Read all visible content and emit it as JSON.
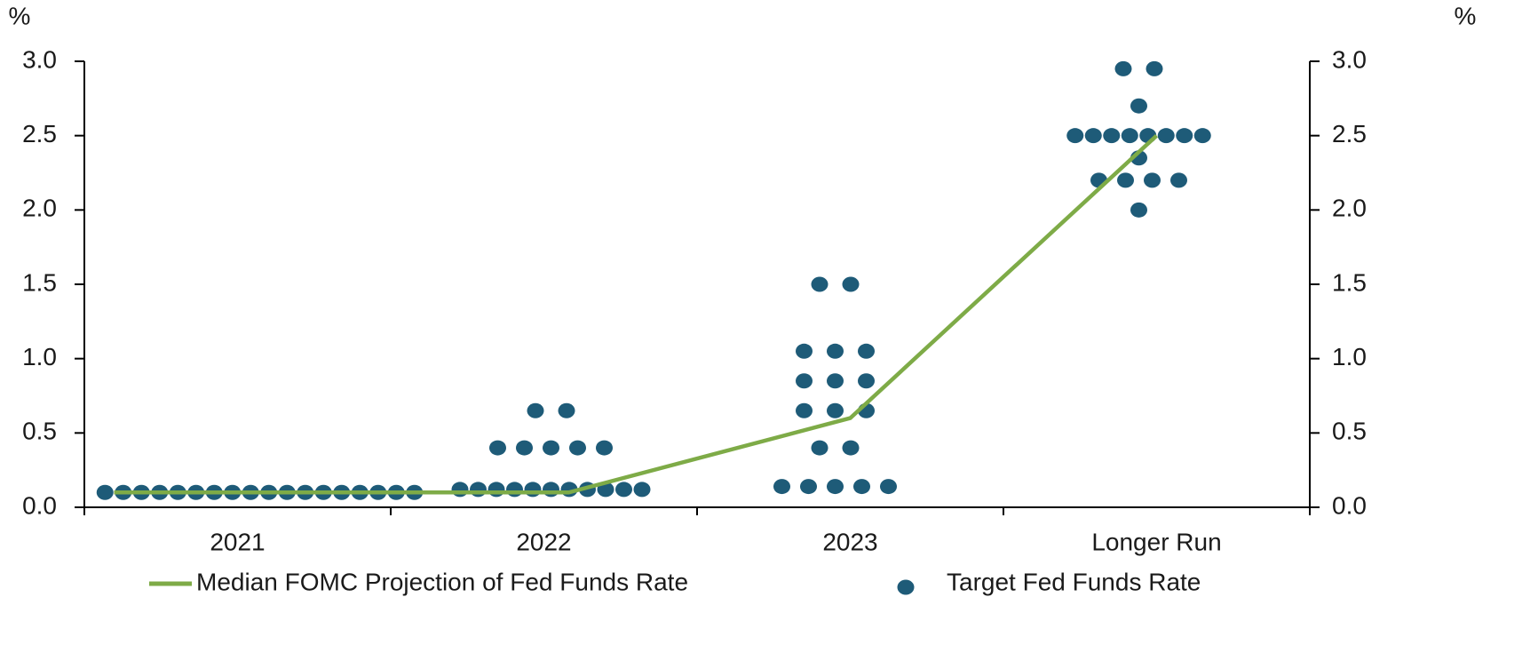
{
  "chart_data": {
    "type": "dot",
    "ylabel": "%",
    "y2label": "%",
    "categories": [
      "2021",
      "2022",
      "2023",
      "Longer Run"
    ],
    "ylim": [
      0,
      3
    ],
    "yticks": [
      {
        "value": 0,
        "label": "0.0"
      },
      {
        "value": 0.5,
        "label": "0.5"
      },
      {
        "value": 1,
        "label": "1.0"
      },
      {
        "value": 1.5,
        "label": "1.5"
      },
      {
        "value": 2,
        "label": "2.0"
      },
      {
        "value": 2.5,
        "label": "2.5"
      },
      {
        "value": 3,
        "label": "3.0"
      }
    ],
    "y2lim": [
      0,
      3
    ],
    "y2ticks": [
      {
        "value": 0,
        "label": "0.0"
      },
      {
        "value": 0.5,
        "label": "0.5"
      },
      {
        "value": 1,
        "label": "1.0"
      },
      {
        "value": 1.5,
        "label": "1.5"
      },
      {
        "value": 2,
        "label": "2.0"
      },
      {
        "value": 2.5,
        "label": "2.5"
      },
      {
        "value": 3,
        "label": "3.0"
      }
    ],
    "series": [
      {
        "name": "Median FOMC Projection of Fed Funds Rate",
        "color": "#7eab47",
        "values": [
          0.1,
          0.1,
          0.6,
          2.5
        ]
      },
      {
        "name": "Target Fed Funds Rate",
        "color": "#1e5b78",
        "values": [
          [
            0.1,
            0.1,
            0.1,
            0.1,
            0.1,
            0.1,
            0.1,
            0.1,
            0.1,
            0.1,
            0.1,
            0.1,
            0.1,
            0.1,
            0.1,
            0.1,
            0.1,
            0.1
          ],
          [
            0.12,
            0.12,
            0.12,
            0.12,
            0.12,
            0.12,
            0.12,
            0.12,
            0.12,
            0.12,
            0.12,
            0.4,
            0.4,
            0.4,
            0.4,
            0.4,
            0.65,
            0.65
          ],
          [
            0.14,
            0.14,
            0.14,
            0.14,
            0.14,
            0.4,
            0.4,
            0.65,
            0.65,
            0.65,
            0.85,
            0.85,
            0.85,
            1.05,
            1.05,
            1.05,
            1.5,
            1.5
          ],
          [
            2.0,
            2.2,
            2.2,
            2.2,
            2.2,
            2.35,
            2.5,
            2.5,
            2.5,
            2.5,
            2.5,
            2.5,
            2.5,
            2.5,
            2.7,
            2.95,
            2.95
          ]
        ]
      }
    ]
  }
}
